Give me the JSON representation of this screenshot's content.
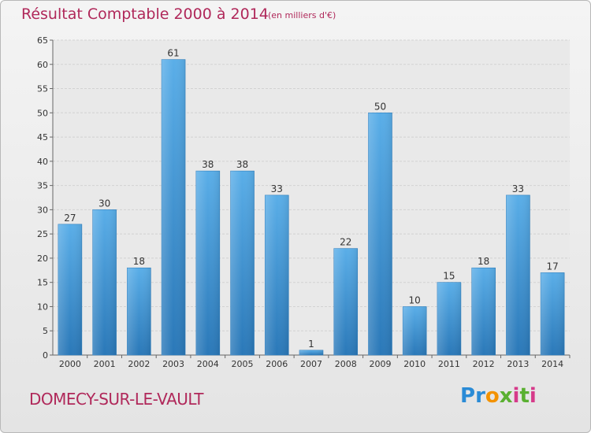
{
  "chart_data": {
    "type": "bar",
    "title": "Résultat Comptable 2000 à 2014",
    "subtitle": "(en milliers d'€)",
    "categories": [
      "2000",
      "2001",
      "2002",
      "2003",
      "2004",
      "2005",
      "2006",
      "2007",
      "2008",
      "2009",
      "2010",
      "2011",
      "2012",
      "2013",
      "2014"
    ],
    "values": [
      27,
      30,
      18,
      61,
      38,
      38,
      33,
      1,
      22,
      50,
      10,
      15,
      18,
      33,
      17
    ],
    "ylim": [
      0,
      65
    ],
    "yticks": [
      0,
      5,
      10,
      15,
      20,
      25,
      30,
      35,
      40,
      45,
      50,
      55,
      60,
      65
    ],
    "grid": true,
    "colors": {
      "bar_light": "#5aaee8",
      "bar_dark": "#2a78b8",
      "title": "#b0285a"
    }
  },
  "footer": {
    "commune": "DOMECY-SUR-LE-VAULT",
    "logo_text": "Proxiti"
  }
}
